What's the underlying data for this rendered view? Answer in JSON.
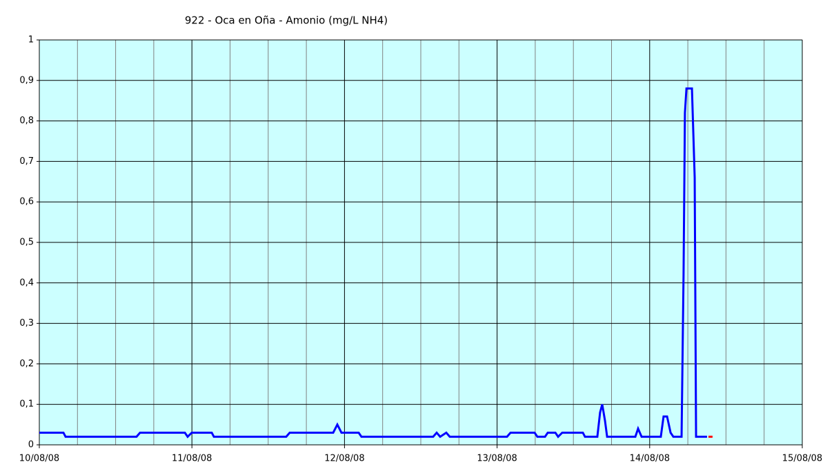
{
  "chart_data": {
    "type": "line",
    "title": "922 - Oca en Oña - Amonio (mg/L NH4)",
    "series": [
      {
        "color": "#0000ff",
        "x": [
          10.0,
          10.158,
          10.172,
          10.637,
          10.66,
          10.954,
          10.972,
          10.999,
          11.13,
          11.144,
          11.618,
          11.641,
          11.926,
          11.953,
          11.98,
          12.093,
          12.111,
          12.581,
          12.604,
          12.627,
          12.667,
          12.69,
          13.065,
          13.088,
          13.246,
          13.264,
          13.314,
          13.332,
          13.382,
          13.4,
          13.427,
          13.562,
          13.576,
          13.657,
          13.675,
          13.689,
          13.707,
          13.721,
          13.906,
          13.924,
          13.947,
          14.073,
          14.091,
          14.114,
          14.137,
          14.155,
          14.209,
          14.222,
          14.231,
          14.241,
          14.277,
          14.286,
          14.295,
          14.304,
          14.376
        ],
        "values": [
          0.03,
          0.03,
          0.02,
          0.02,
          0.03,
          0.03,
          0.02,
          0.03,
          0.03,
          0.02,
          0.02,
          0.03,
          0.03,
          0.05,
          0.03,
          0.03,
          0.02,
          0.02,
          0.03,
          0.02,
          0.03,
          0.02,
          0.02,
          0.03,
          0.03,
          0.02,
          0.02,
          0.03,
          0.03,
          0.02,
          0.03,
          0.03,
          0.02,
          0.02,
          0.08,
          0.1,
          0.06,
          0.02,
          0.02,
          0.04,
          0.02,
          0.02,
          0.07,
          0.07,
          0.03,
          0.02,
          0.02,
          0.42,
          0.82,
          0.88,
          0.88,
          0.77,
          0.66,
          0.02,
          0.02
        ]
      },
      {
        "color": "#ff0000",
        "x": [
          14.385,
          14.412
        ],
        "values": [
          0.02,
          0.02
        ]
      }
    ],
    "xlim": [
      10,
      15
    ],
    "xticks": [
      {
        "value": 10,
        "label": "10/08/08"
      },
      {
        "value": 11,
        "label": "11/08/08"
      },
      {
        "value": 12,
        "label": "12/08/08"
      },
      {
        "value": 13,
        "label": "13/08/08"
      },
      {
        "value": 14,
        "label": "14/08/08"
      },
      {
        "value": 15,
        "label": "15/08/08"
      }
    ],
    "x_minor_per_major": 4,
    "ylim": [
      0,
      1
    ],
    "yticks": [
      0,
      {
        "value": 0.1,
        "label": "0,1"
      },
      {
        "value": 0.2,
        "label": "0,2"
      },
      {
        "value": 0.3,
        "label": "0,3"
      },
      {
        "value": 0.4,
        "label": "0,4"
      },
      {
        "value": 0.5,
        "label": "0,5"
      },
      {
        "value": 0.6,
        "label": "0,6"
      },
      {
        "value": 0.7,
        "label": "0,7"
      },
      {
        "value": 0.8,
        "label": "0,8"
      },
      {
        "value": 0.9,
        "label": "0,9"
      },
      1
    ],
    "grid": true,
    "background": "#ccffff"
  }
}
